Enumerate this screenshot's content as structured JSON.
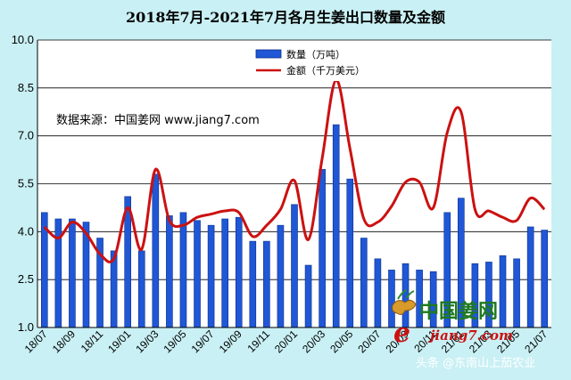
{
  "chart_data": {
    "type": "bar",
    "title": "2018年7月-2021年7月各月生姜出口数量及金额",
    "ylim": [
      1.0,
      10.0
    ],
    "yticks": [
      "1.0",
      "2.5",
      "4.0",
      "5.5",
      "7.0",
      "8.5",
      "10.0"
    ],
    "x_tick_labels": [
      "18/07",
      "18/09",
      "18/11",
      "19/01",
      "19/03",
      "19/05",
      "19/07",
      "19/09",
      "19/11",
      "20/01",
      "20/03",
      "20/05",
      "20/07",
      "20/09",
      "20/11",
      "21/01",
      "21/03",
      "21/05",
      "21/07"
    ],
    "categories": [
      "18/07",
      "18/08",
      "18/09",
      "18/10",
      "18/11",
      "18/12",
      "19/01",
      "19/02",
      "19/03",
      "19/04",
      "19/05",
      "19/06",
      "19/07",
      "19/08",
      "19/09",
      "19/10",
      "19/11",
      "19/12",
      "20/01",
      "20/02",
      "20/03",
      "20/04",
      "20/05",
      "20/06",
      "20/07",
      "20/08",
      "20/09",
      "20/10",
      "20/11",
      "20/12",
      "21/01",
      "21/02",
      "21/03",
      "21/04",
      "21/05",
      "21/06",
      "21/07"
    ],
    "grid": true,
    "legend_position": "top-center",
    "series": [
      {
        "name": "数量（万吨）",
        "kind": "bar",
        "color": "#1f57d6",
        "values": [
          4.6,
          4.4,
          4.4,
          4.3,
          3.8,
          3.4,
          5.1,
          3.4,
          5.8,
          4.5,
          4.6,
          4.35,
          4.2,
          4.4,
          4.45,
          3.7,
          3.7,
          4.2,
          4.85,
          2.95,
          5.95,
          7.35,
          5.65,
          3.8,
          3.15,
          2.8,
          3.0,
          2.8,
          2.75,
          4.6,
          5.05,
          3.0,
          3.05,
          3.25,
          3.15,
          4.15,
          4.05
        ]
      },
      {
        "name": "金额（千万美元）",
        "kind": "line",
        "color": "#cc1111",
        "values": [
          4.15,
          3.8,
          4.3,
          3.95,
          3.3,
          3.15,
          4.75,
          3.45,
          5.95,
          4.35,
          4.2,
          4.45,
          4.55,
          4.65,
          4.6,
          3.85,
          4.2,
          4.7,
          5.6,
          3.75,
          6.3,
          8.75,
          6.6,
          4.4,
          4.3,
          4.8,
          5.55,
          5.55,
          4.75,
          7.1,
          7.75,
          4.7,
          4.65,
          4.45,
          4.35,
          5.05,
          4.7
        ]
      }
    ],
    "annotations": [
      "数据来源：中国姜网 www.jiang7.com"
    ]
  },
  "watermark": {
    "logo_text": "中国姜网",
    "logo_url": "jiang7.com",
    "credit": "头条 @东南山上茄农业"
  },
  "colors": {
    "background": "#c9f0f4",
    "plot_background": "#ffffff",
    "bar": "#1f57d6",
    "line": "#cc1111"
  }
}
